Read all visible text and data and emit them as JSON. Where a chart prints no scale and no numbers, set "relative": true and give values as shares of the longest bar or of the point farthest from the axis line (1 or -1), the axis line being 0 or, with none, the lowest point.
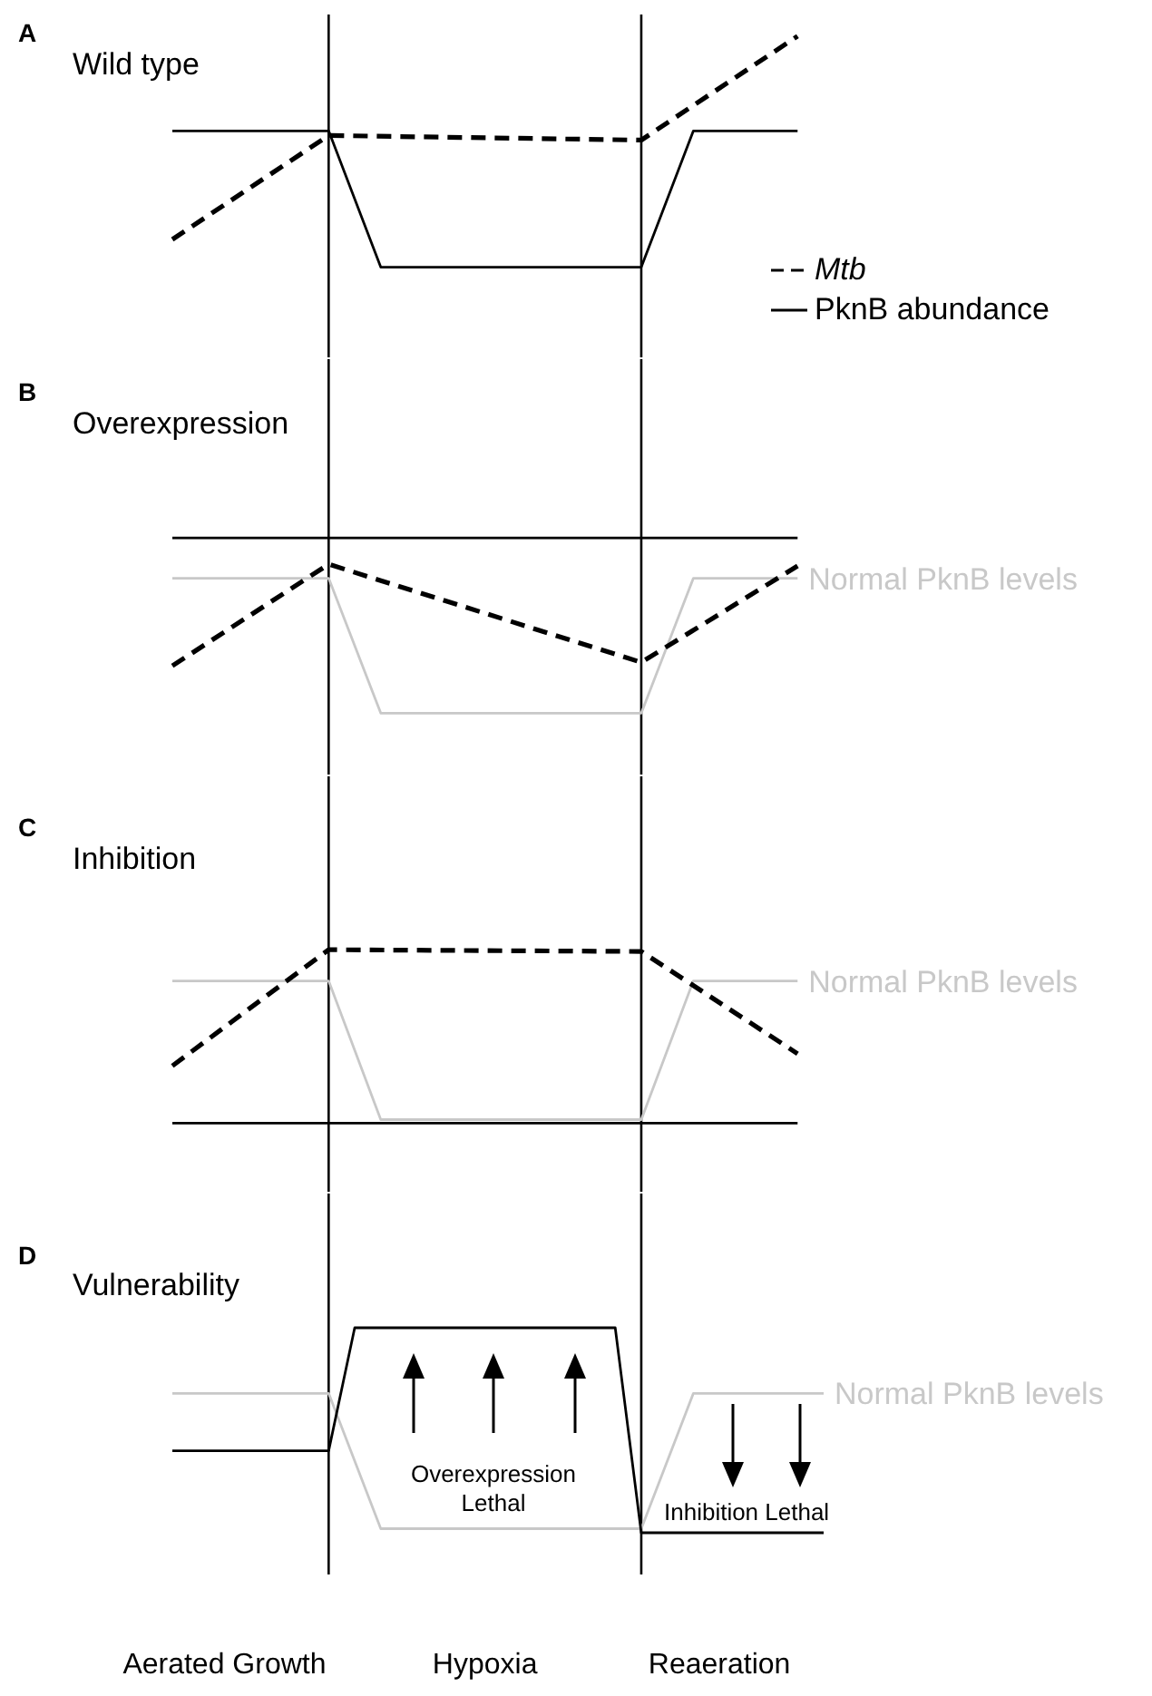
{
  "chart_data": [
    {
      "type": "line",
      "title": "Wild type",
      "annotations": [
        "A"
      ],
      "relative": true,
      "tick_labels": false,
      "legend": "right",
      "categories": [
        null,
        null,
        null,
        null,
        null,
        null,
        null,
        null,
        null,
        null,
        null,
        null,
        null,
        null,
        null,
        null,
        null,
        null,
        null,
        null,
        null,
        null,
        null,
        null,
        null,
        null
      ],
      "series": [
        {
          "name": "Mtb",
          "color": "#000000",
          "line_style": "dashed",
          "values": [
            0.12,
            null,
            null,
            null,
            null,
            null,
            0.57,
            null,
            null,
            null,
            null,
            null,
            null,
            null,
            null,
            null,
            null,
            null,
            0.55,
            null,
            null,
            null,
            null,
            null,
            1,
            null
          ]
        },
        {
          "name": "PknB abundance",
          "color": "#000000",
          "line_style": "solid",
          "values": [
            0.59,
            null,
            null,
            null,
            null,
            null,
            0.59,
            null,
            0,
            null,
            null,
            null,
            null,
            null,
            null,
            null,
            null,
            null,
            0,
            null,
            0.59,
            null,
            null,
            null,
            0.59,
            null
          ]
        }
      ]
    },
    {
      "type": "line",
      "title": "Overexpression",
      "annotations": [
        "B"
      ],
      "relative": true,
      "tick_labels": false,
      "categories": [
        null,
        null,
        null,
        null,
        null,
        null,
        null,
        null,
        null,
        null,
        null,
        null,
        null,
        null,
        null,
        null,
        null,
        null,
        null,
        null,
        null,
        null,
        null,
        null,
        null,
        null
      ],
      "series": [
        {
          "color": "#000000",
          "line_style": "solid",
          "values": [
            1,
            null,
            null,
            null,
            null,
            null,
            null,
            null,
            null,
            null,
            null,
            null,
            null,
            null,
            null,
            null,
            null,
            null,
            null,
            null,
            null,
            null,
            null,
            null,
            1,
            null
          ]
        },
        {
          "name": "Normal PknB levels",
          "color": "#c8c8c8",
          "line_style": "solid",
          "values": [
            0.77,
            null,
            null,
            null,
            null,
            null,
            0.77,
            null,
            0,
            null,
            null,
            null,
            null,
            null,
            null,
            null,
            null,
            null,
            0,
            null,
            0.77,
            null,
            null,
            null,
            0.77,
            null
          ]
        },
        {
          "color": "#000000",
          "line_style": "dashed",
          "values": [
            0.27,
            null,
            null,
            null,
            null,
            null,
            0.85,
            null,
            null,
            null,
            null,
            null,
            null,
            null,
            null,
            null,
            null,
            null,
            0.29,
            null,
            null,
            null,
            null,
            null,
            0.84,
            null
          ]
        }
      ]
    },
    {
      "type": "line",
      "title": "Inhibition",
      "annotations": [
        "C"
      ],
      "relative": true,
      "tick_labels": false,
      "categories": [
        null,
        null,
        null,
        null,
        null,
        null,
        null,
        null,
        null,
        null,
        null,
        null,
        null,
        null,
        null,
        null,
        null,
        null,
        null,
        null,
        null,
        null,
        null,
        null,
        null,
        null
      ],
      "series": [
        {
          "color": "#000000",
          "line_style": "solid",
          "values": [
            0,
            null,
            null,
            null,
            null,
            null,
            null,
            null,
            null,
            null,
            null,
            null,
            null,
            null,
            null,
            null,
            null,
            null,
            null,
            null,
            null,
            null,
            null,
            null,
            0,
            null
          ]
        },
        {
          "name": "Normal PknB levels",
          "color": "#c8c8c8",
          "line_style": "solid",
          "values": [
            0.82,
            null,
            null,
            null,
            null,
            null,
            0.82,
            null,
            0.02,
            null,
            null,
            null,
            null,
            null,
            null,
            null,
            null,
            null,
            0.02,
            null,
            0.82,
            null,
            null,
            null,
            0.82,
            null
          ]
        },
        {
          "color": "#000000",
          "line_style": "dashed",
          "values": [
            0.33,
            null,
            null,
            null,
            null,
            null,
            1,
            null,
            null,
            null,
            null,
            null,
            null,
            null,
            null,
            null,
            null,
            null,
            0.99,
            null,
            null,
            null,
            null,
            null,
            0.4,
            null
          ]
        }
      ]
    },
    {
      "type": "line",
      "title": "Vulnerability",
      "annotations": [
        "D",
        "Overexpression Lethal",
        "Inhibition Lethal"
      ],
      "relative": true,
      "tick_labels": "x",
      "categories": [
        null,
        null,
        "Aerated Growth",
        null,
        null,
        null,
        null,
        null,
        null,
        null,
        null,
        null,
        "Hypoxia",
        null,
        null,
        null,
        null,
        null,
        null,
        null,
        null,
        "Reaeration",
        null,
        null,
        null,
        null
      ],
      "series": [
        {
          "name": "Normal PknB levels",
          "color": "#c8c8c8",
          "line_style": "solid",
          "values": [
            0.68,
            null,
            null,
            null,
            null,
            null,
            0.68,
            null,
            0.02,
            null,
            null,
            null,
            null,
            null,
            null,
            null,
            null,
            null,
            0.02,
            null,
            0.68,
            null,
            null,
            null,
            null,
            0.68
          ]
        },
        {
          "color": "#000000",
          "line_style": "solid",
          "values": [
            0.4,
            null,
            null,
            null,
            null,
            null,
            0.4,
            1,
            null,
            null,
            null,
            null,
            null,
            null,
            null,
            null,
            null,
            1,
            0,
            null,
            null,
            null,
            null,
            null,
            null,
            0
          ]
        }
      ]
    }
  ]
}
